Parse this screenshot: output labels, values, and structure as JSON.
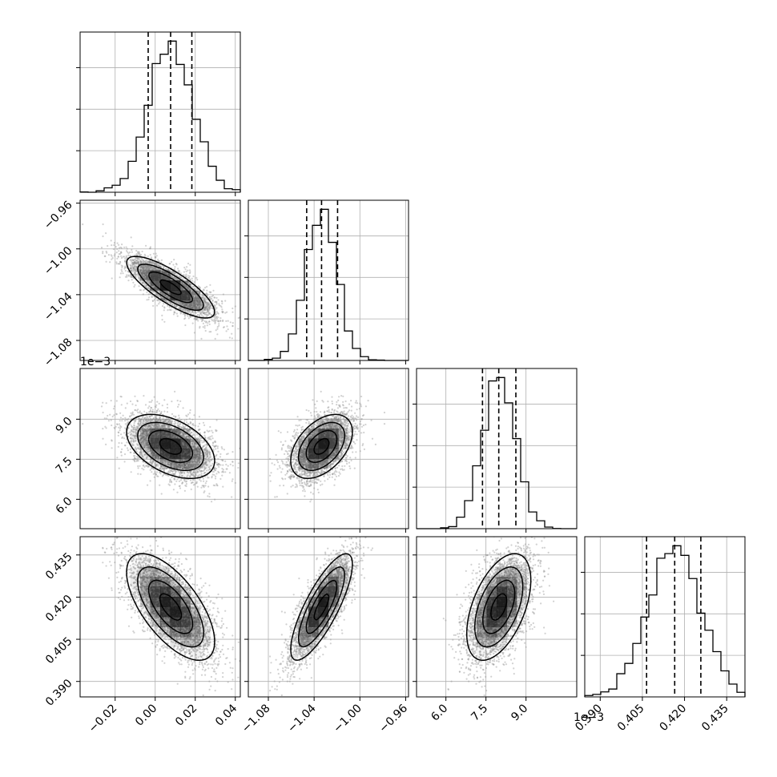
{
  "chart_data": {
    "type": "corner",
    "parameters": [
      {
        "key": "p0",
        "range": [
          -0.0375,
          0.0425
        ],
        "ticks": [
          -0.02,
          0.0,
          0.02,
          0.04
        ],
        "tick_labels": [
          "−0.02",
          "0.00",
          "0.02",
          "0.04"
        ],
        "quantiles": [
          -0.0035,
          0.0077,
          0.0183
        ],
        "mean": 0.0077,
        "sd": 0.011,
        "offset_label": ""
      },
      {
        "key": "p1",
        "range": [
          -1.0975,
          -0.9575
        ],
        "ticks": [
          -1.08,
          -1.04,
          -1.0,
          -0.96
        ],
        "tick_labels": [
          "−1.08",
          "−1.04",
          "−1.00",
          "−0.96"
        ],
        "quantiles": [
          -1.0465,
          -1.0335,
          -1.0195
        ],
        "mean": -1.0335,
        "sd": 0.0135,
        "offset_label": ""
      },
      {
        "key": "p2",
        "range": [
          4.9,
          10.9
        ],
        "ticks": [
          6.0,
          7.5,
          9.0
        ],
        "tick_labels": [
          "6.0",
          "7.5",
          "9.0"
        ],
        "quantiles": [
          7.37,
          7.98,
          8.62
        ],
        "mean": 7.98,
        "sd": 0.6,
        "offset_label": "1e−3"
      },
      {
        "key": "p3",
        "range": [
          0.3845,
          0.4415
        ],
        "ticks": [
          0.39,
          0.405,
          0.42,
          0.435
        ],
        "tick_labels": [
          "0.390",
          "0.405",
          "0.420",
          "0.435"
        ],
        "quantiles": [
          0.4065,
          0.4165,
          0.4258
        ],
        "mean": 0.4165,
        "sd": 0.0095,
        "offset_label": ""
      }
    ],
    "correlations": [
      {
        "pair": [
          0,
          1
        ],
        "rho": -0.8
      },
      {
        "pair": [
          0,
          2
        ],
        "rho": -0.45
      },
      {
        "pair": [
          1,
          2
        ],
        "rho": 0.45
      },
      {
        "pair": [
          0,
          3
        ],
        "rho": -0.65
      },
      {
        "pair": [
          1,
          3
        ],
        "rho": 0.8
      },
      {
        "pair": [
          2,
          3
        ],
        "rho": 0.5
      }
    ],
    "histogram_bins": 20,
    "contour_levels": [
      0.5,
      1.0,
      1.5,
      2.0
    ],
    "grid": true,
    "colors": {
      "lines": "#000000",
      "samples": "#9a9a9a",
      "grid": "#b0b0b0",
      "fill": "#000000"
    }
  }
}
